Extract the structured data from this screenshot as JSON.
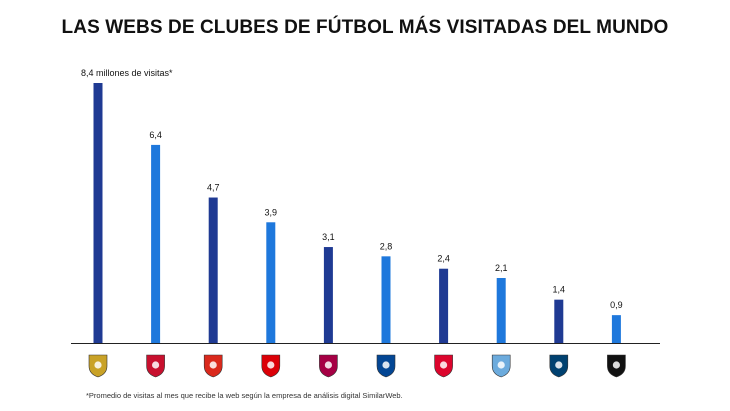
{
  "title": "LAS WEBS DE CLUBES DE FÚTBOL MÁS VISITADAS DEL MUNDO",
  "footnote": "*Promedio de visitas al mes que recibe la web según la empresa de análisis digital SimilarWeb.",
  "chart_data": {
    "type": "bar",
    "title": "LAS WEBS DE CLUBES DE FÚTBOL MÁS VISITADAS DEL MUNDO",
    "unit": "millones de visitas",
    "xlabel": "",
    "ylabel": "",
    "ylim": [
      0,
      8.4
    ],
    "grid": false,
    "categories": [
      "Real Madrid",
      "Liverpool",
      "Manchester United",
      "Arsenal",
      "FC Barcelona",
      "Chelsea",
      "Bayern München",
      "Manchester City",
      "Paris Saint-Germain",
      "Juventus"
    ],
    "values": [
      8.4,
      6.4,
      4.7,
      3.9,
      3.1,
      2.8,
      2.4,
      2.1,
      1.4,
      0.9
    ],
    "value_labels": [
      "8,4 millones de visitas*",
      "6,4",
      "4,7",
      "3,9",
      "3,1",
      "2,8",
      "2,4",
      "2,1",
      "1,4",
      "0,9"
    ],
    "colors": [
      "#1f3a93",
      "#1e78dc",
      "#1f3a93",
      "#1e78dc",
      "#1f3a93",
      "#1e78dc",
      "#1f3a93",
      "#1e78dc",
      "#1f3a93",
      "#1e78dc"
    ],
    "logo_icons": [
      "real-madrid-crest-icon",
      "liverpool-crest-icon",
      "manchester-united-crest-icon",
      "arsenal-crest-icon",
      "barcelona-crest-icon",
      "chelsea-crest-icon",
      "bayern-crest-icon",
      "manchester-city-crest-icon",
      "psg-crest-icon",
      "juventus-crest-icon"
    ],
    "logo_colors": [
      "#c9a227",
      "#c8102e",
      "#da291c",
      "#db0007",
      "#a50044",
      "#034694",
      "#dc052d",
      "#6cabdd",
      "#004170",
      "#111111"
    ]
  }
}
